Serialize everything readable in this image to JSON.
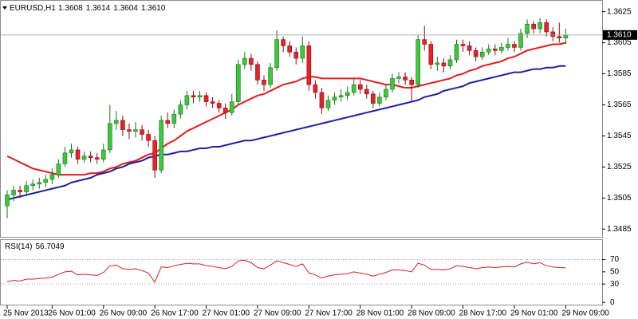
{
  "chart_data": [
    {
      "type": "candlestick",
      "symbol": "EURUSD,H1",
      "categories": [
        "25 Nov 2013",
        null,
        null,
        null,
        null,
        null,
        null,
        "26 Nov 01:00",
        null,
        null,
        null,
        null,
        null,
        null,
        null,
        "26 Nov 09:00",
        null,
        null,
        null,
        null,
        null,
        null,
        null,
        "26 Nov 17:00",
        null,
        null,
        null,
        null,
        null,
        null,
        null,
        "27 Nov 01:00",
        null,
        null,
        null,
        null,
        null,
        null,
        null,
        "27 Nov 09:00",
        null,
        null,
        null,
        null,
        null,
        null,
        null,
        "27 Nov 17:00",
        null,
        null,
        null,
        null,
        null,
        null,
        null,
        "28 Nov 01:00",
        null,
        null,
        null,
        null,
        null,
        null,
        null,
        "28 Nov 09:00",
        null,
        null,
        null,
        null,
        null,
        null,
        null,
        "28 Nov 17:00",
        null,
        null,
        null,
        null,
        null,
        null,
        null,
        "29 Nov 01:00",
        null,
        null,
        null,
        null,
        null,
        null,
        null,
        "29 Nov 09:00"
      ],
      "open": [
        1.35,
        1.3507,
        1.351,
        1.3509,
        1.3513,
        1.3514,
        1.3515,
        1.3517,
        1.352,
        1.3527,
        1.3534,
        1.3536,
        1.353,
        1.3532,
        1.3531,
        1.353,
        1.3536,
        1.3553,
        1.3555,
        1.3549,
        1.3548,
        1.3549,
        1.3546,
        1.3542,
        1.3523,
        1.3555,
        1.3553,
        1.3559,
        1.3565,
        1.3571,
        1.357,
        1.3571,
        1.3567,
        1.3566,
        1.3563,
        1.356,
        1.3567,
        1.3591,
        1.3595,
        1.3591,
        1.3581,
        1.3578,
        1.3589,
        1.3607,
        1.3603,
        1.3599,
        1.3595,
        1.3603,
        1.3578,
        1.3573,
        1.3563,
        1.3568,
        1.357,
        1.3571,
        1.3573,
        1.3578,
        1.3575,
        1.3572,
        1.3566,
        1.357,
        1.3575,
        1.3582,
        1.3583,
        1.3581,
        1.3578,
        1.3607,
        1.3604,
        1.3591,
        1.3592,
        1.359,
        1.3594,
        1.3604,
        1.3603,
        1.36,
        1.3596,
        1.3599,
        1.3601,
        1.36,
        1.3602,
        1.3604,
        1.3602,
        1.3611,
        1.3617,
        1.3614,
        1.3618,
        1.3612,
        1.3609,
        1.3608
      ],
      "high": [
        1.351,
        1.3513,
        1.3513,
        1.3516,
        1.3517,
        1.3518,
        1.352,
        1.3524,
        1.353,
        1.3538,
        1.354,
        1.3538,
        1.3535,
        1.3535,
        1.3534,
        1.354,
        1.3565,
        1.3561,
        1.3558,
        1.3553,
        1.3554,
        1.3552,
        1.3549,
        1.3545,
        1.3558,
        1.356,
        1.3562,
        1.3568,
        1.3574,
        1.3574,
        1.3574,
        1.3573,
        1.357,
        1.3568,
        1.3566,
        1.3572,
        1.3594,
        1.3599,
        1.3598,
        1.3593,
        1.3584,
        1.3592,
        1.3613,
        1.3609,
        1.3606,
        1.3602,
        1.3609,
        1.3606,
        1.3581,
        1.3576,
        1.3571,
        1.3573,
        1.3575,
        1.3577,
        1.3582,
        1.3581,
        1.3578,
        1.3574,
        1.3573,
        1.3578,
        1.3585,
        1.3586,
        1.3586,
        1.3583,
        1.361,
        1.3616,
        1.3606,
        1.3596,
        1.3595,
        1.3597,
        1.3607,
        1.3607,
        1.3606,
        1.3602,
        1.3602,
        1.3604,
        1.3604,
        1.3605,
        1.3608,
        1.3606,
        1.3614,
        1.362,
        1.3619,
        1.3621,
        1.362,
        1.3615,
        1.3618,
        1.3614
      ],
      "low": [
        1.3492,
        1.3503,
        1.3505,
        1.3506,
        1.351,
        1.3511,
        1.3512,
        1.3514,
        1.3518,
        1.3525,
        1.3531,
        1.3527,
        1.3528,
        1.3528,
        1.3527,
        1.3528,
        1.3534,
        1.3549,
        1.3545,
        1.3543,
        1.3544,
        1.3542,
        1.3538,
        1.3518,
        1.3521,
        1.355,
        1.355,
        1.3556,
        1.3562,
        1.3566,
        1.3567,
        1.3564,
        1.3563,
        1.356,
        1.3556,
        1.3558,
        1.3565,
        1.3588,
        1.3587,
        1.3578,
        1.3574,
        1.3576,
        1.3587,
        1.3599,
        1.3596,
        1.3591,
        1.3592,
        1.3574,
        1.3569,
        1.3559,
        1.3561,
        1.3565,
        1.3567,
        1.3568,
        1.3571,
        1.3572,
        1.3569,
        1.3563,
        1.3564,
        1.3568,
        1.3573,
        1.3579,
        1.3578,
        1.3567,
        1.3576,
        1.36,
        1.3588,
        1.3587,
        1.3586,
        1.3588,
        1.3592,
        1.3599,
        1.3597,
        1.3593,
        1.3594,
        1.3597,
        1.3597,
        1.3598,
        1.36,
        1.3599,
        1.36,
        1.3608,
        1.3611,
        1.3611,
        1.3609,
        1.3606,
        1.3605,
        1.3604
      ],
      "close": [
        1.3507,
        1.351,
        1.3509,
        1.3513,
        1.3514,
        1.3515,
        1.3517,
        1.352,
        1.3527,
        1.3534,
        1.3536,
        1.353,
        1.3532,
        1.3531,
        1.353,
        1.3536,
        1.3553,
        1.3555,
        1.3549,
        1.3548,
        1.3549,
        1.3546,
        1.3542,
        1.3523,
        1.3555,
        1.3553,
        1.3559,
        1.3565,
        1.3571,
        1.357,
        1.3571,
        1.3567,
        1.3566,
        1.3563,
        1.356,
        1.3567,
        1.3591,
        1.3595,
        1.3591,
        1.3581,
        1.3578,
        1.3589,
        1.3607,
        1.3603,
        1.3599,
        1.3595,
        1.3603,
        1.3578,
        1.3573,
        1.3563,
        1.3568,
        1.357,
        1.3571,
        1.3573,
        1.3578,
        1.3575,
        1.3572,
        1.3566,
        1.357,
        1.3575,
        1.3582,
        1.3583,
        1.3581,
        1.3578,
        1.3607,
        1.3604,
        1.3591,
        1.3592,
        1.359,
        1.3594,
        1.3604,
        1.3603,
        1.36,
        1.3596,
        1.3599,
        1.3601,
        1.36,
        1.3602,
        1.3604,
        1.3602,
        1.3611,
        1.3617,
        1.3614,
        1.3618,
        1.3612,
        1.3609,
        1.3608,
        1.361
      ],
      "last_close_label": "1.3610",
      "up_color": "#3cc83c",
      "down_color": "#e8202a",
      "series": [
        {
          "color": "#e31c1c",
          "values": [
            1.3532,
            1.353,
            1.3528,
            1.3526,
            1.3524,
            1.3523,
            1.3522,
            1.3521,
            1.352,
            1.352,
            1.352,
            1.352,
            1.352,
            1.3521,
            1.3521,
            1.3522,
            1.3524,
            1.3525,
            1.3527,
            1.3528,
            1.3529,
            1.3531,
            1.3533,
            1.3534,
            1.3537,
            1.354,
            1.3542,
            1.3545,
            1.3548,
            1.355,
            1.3552,
            1.3554,
            1.3556,
            1.3558,
            1.356,
            1.3562,
            1.3565,
            1.3567,
            1.3569,
            1.3571,
            1.3572,
            1.3574,
            1.3576,
            1.3578,
            1.3579,
            1.358,
            1.3582,
            1.3583,
            1.3583,
            1.3582,
            1.3582,
            1.3582,
            1.3582,
            1.3582,
            1.3582,
            1.3582,
            1.3581,
            1.358,
            1.3579,
            1.3578,
            1.3578,
            1.3577,
            1.3576,
            1.3576,
            1.3577,
            1.3578,
            1.3579,
            1.358,
            1.3581,
            1.3582,
            1.3584,
            1.3585,
            1.3587,
            1.3588,
            1.359,
            1.3591,
            1.3592,
            1.3593,
            1.3595,
            1.3596,
            1.3598,
            1.36,
            1.3601,
            1.3602,
            1.3603,
            1.3604,
            1.3604,
            1.3605
          ]
        },
        {
          "color": "#1f1f9e",
          "values": [
            1.3504,
            1.3505,
            1.3506,
            1.3507,
            1.3508,
            1.3509,
            1.351,
            1.3511,
            1.3512,
            1.3513,
            1.3515,
            1.3516,
            1.3517,
            1.3518,
            1.352,
            1.3521,
            1.3522,
            1.3524,
            1.3525,
            1.3527,
            1.3528,
            1.3529,
            1.3531,
            1.3532,
            1.3533,
            1.3533,
            1.3534,
            1.3535,
            1.3535,
            1.3536,
            1.3537,
            1.3537,
            1.3538,
            1.3538,
            1.3539,
            1.354,
            1.3541,
            1.3542,
            1.3542,
            1.3543,
            1.3544,
            1.3545,
            1.3546,
            1.3547,
            1.3548,
            1.3549,
            1.355,
            1.3551,
            1.3552,
            1.3553,
            1.3554,
            1.3555,
            1.3556,
            1.3557,
            1.3558,
            1.3559,
            1.356,
            1.3561,
            1.3562,
            1.3563,
            1.3564,
            1.3565,
            1.3566,
            1.3567,
            1.3568,
            1.357,
            1.3571,
            1.3572,
            1.3574,
            1.3575,
            1.3576,
            1.3577,
            1.3579,
            1.358,
            1.3581,
            1.3582,
            1.3583,
            1.3584,
            1.3585,
            1.3586,
            1.3586,
            1.3587,
            1.3588,
            1.3588,
            1.3589,
            1.3589,
            1.359,
            1.359
          ]
        }
      ],
      "ylim": [
        1.348,
        1.3632
      ],
      "yticks": [
        1.3625,
        1.3605,
        1.3585,
        1.3565,
        1.3545,
        1.3525,
        1.3505,
        1.3485
      ]
    },
    {
      "type": "line",
      "title": "RSI(14)",
      "color": "#d42020",
      "values": [
        34,
        36,
        35,
        38,
        38,
        39,
        40,
        41,
        46,
        50,
        51,
        45,
        46,
        45,
        44,
        49,
        60,
        61,
        55,
        54,
        55,
        52,
        48,
        33,
        58,
        57,
        60,
        62,
        64,
        63,
        63,
        60,
        59,
        57,
        55,
        59,
        68,
        69,
        65,
        57,
        55,
        61,
        68,
        65,
        62,
        59,
        63,
        48,
        45,
        40,
        43,
        45,
        46,
        47,
        50,
        48,
        46,
        43,
        46,
        49,
        53,
        53,
        52,
        50,
        64,
        61,
        54,
        54,
        53,
        55,
        60,
        59,
        57,
        55,
        57,
        58,
        57,
        58,
        59,
        58,
        63,
        66,
        63,
        65,
        60,
        58,
        57,
        56.7049
      ],
      "ylim": [
        -5,
        102
      ],
      "yticks": [
        70,
        50,
        30,
        0
      ],
      "levels": [
        70,
        30
      ]
    }
  ]
}
